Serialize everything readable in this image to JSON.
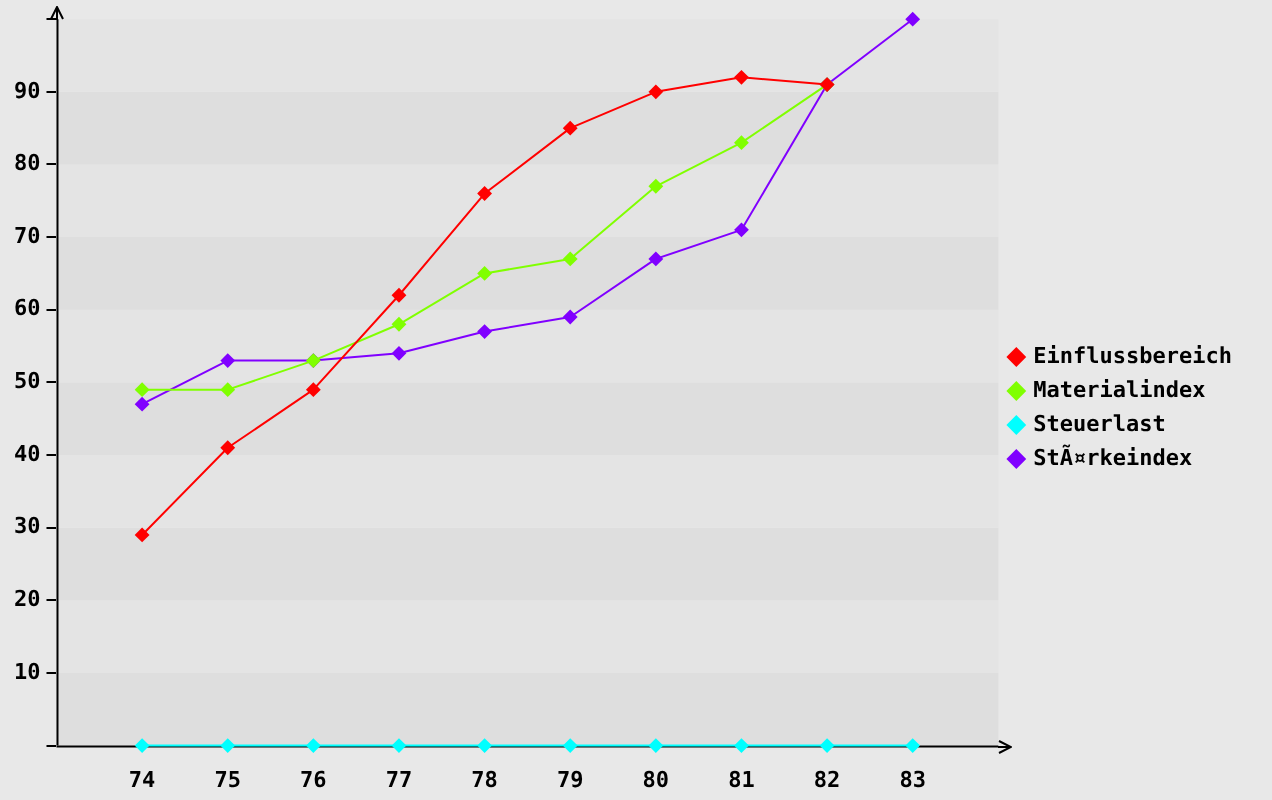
{
  "chart_data": {
    "type": "line",
    "x": [
      74,
      75,
      76,
      77,
      78,
      79,
      80,
      81,
      82,
      83
    ],
    "xlim": [
      73,
      84
    ],
    "xticks": [
      74,
      75,
      76,
      77,
      78,
      79,
      80,
      81,
      82,
      83
    ],
    "ylim": [
      0,
      100
    ],
    "yticks": [
      {
        "value": 0,
        "label": null
      },
      10,
      20,
      30,
      40,
      50,
      60,
      70,
      80,
      90,
      {
        "value": 100,
        "label": null
      }
    ],
    "legend": "right",
    "marker": "diamond",
    "line_style": "solid",
    "series": [
      {
        "name": "Einflussbereich",
        "color": "#ff0000",
        "values": [
          29,
          41,
          49,
          62,
          76,
          85,
          90,
          92,
          91,
          null
        ]
      },
      {
        "name": "Materialindex",
        "color": "#80ff00",
        "values": [
          49,
          49,
          53,
          58,
          65,
          67,
          77,
          83,
          91,
          null
        ]
      },
      {
        "name": "Steuerlast",
        "color": "#00ffff",
        "values": [
          0,
          0,
          0,
          0,
          0,
          0,
          0,
          0,
          0,
          0
        ]
      },
      {
        "name": "StÃ¤rkeindex",
        "color": "#8000ff",
        "values": [
          47,
          53,
          53,
          54,
          57,
          59,
          67,
          71,
          91,
          100
        ]
      }
    ]
  }
}
